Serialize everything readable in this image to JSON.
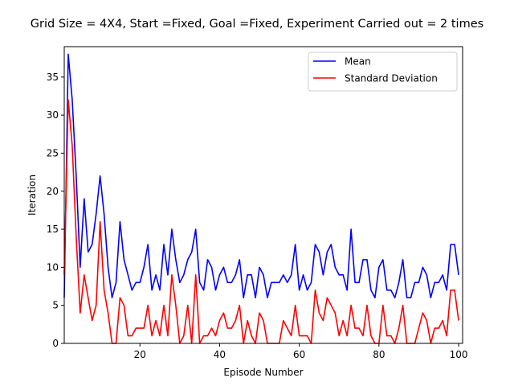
{
  "chart_data": {
    "type": "line",
    "title": "Grid Size = 4X4, Start =Fixed, Goal =Fixed, Experiment Carried out = 2 times",
    "xlabel": "Episode Number",
    "ylabel": "Iteration",
    "xlim": [
      1,
      101
    ],
    "ylim": [
      0,
      39
    ],
    "xticks": [
      20,
      40,
      60,
      80,
      100
    ],
    "yticks": [
      0,
      5,
      10,
      15,
      20,
      25,
      30,
      35
    ],
    "grid": false,
    "legend_position": "upper right",
    "x": [
      1,
      2,
      3,
      4,
      5,
      6,
      7,
      8,
      9,
      10,
      11,
      12,
      13,
      14,
      15,
      16,
      17,
      18,
      19,
      20,
      21,
      22,
      23,
      24,
      25,
      26,
      27,
      28,
      29,
      30,
      31,
      32,
      33,
      34,
      35,
      36,
      37,
      38,
      39,
      40,
      41,
      42,
      43,
      44,
      45,
      46,
      47,
      48,
      49,
      50,
      51,
      52,
      53,
      54,
      55,
      56,
      57,
      58,
      59,
      60,
      61,
      62,
      63,
      64,
      65,
      66,
      67,
      68,
      69,
      70,
      71,
      72,
      73,
      74,
      75,
      76,
      77,
      78,
      79,
      80,
      81,
      82,
      83,
      84,
      85,
      86,
      87,
      88,
      89,
      90,
      91,
      92,
      93,
      94,
      95,
      96,
      97,
      98,
      99,
      100
    ],
    "series": [
      {
        "name": "Mean",
        "color": "#0000ff",
        "values": [
          6,
          38,
          32,
          22,
          10,
          19,
          12,
          13,
          17,
          22,
          17,
          10,
          6,
          8,
          16,
          11,
          9,
          7,
          8,
          8,
          10,
          13,
          7,
          9,
          7,
          13,
          9,
          15,
          11,
          8,
          9,
          11,
          12,
          15,
          8,
          7,
          11,
          10,
          7,
          9,
          10,
          8,
          8,
          9,
          11,
          6,
          9,
          9,
          6,
          10,
          9,
          6,
          8,
          8,
          8,
          9,
          8,
          9,
          13,
          7,
          9,
          7,
          8,
          13,
          12,
          9,
          12,
          13,
          10,
          9,
          9,
          7,
          15,
          8,
          8,
          11,
          11,
          7,
          6,
          10,
          11,
          7,
          7,
          6,
          8,
          11,
          6,
          6,
          8,
          8,
          10,
          9,
          6,
          8,
          8,
          9,
          7,
          13,
          13,
          9
        ]
      },
      {
        "name": "Standard Deviation",
        "color": "#ff0000",
        "values": [
          9,
          32,
          26,
          14,
          4,
          9,
          6,
          3,
          5,
          16,
          7,
          4,
          0,
          0,
          6,
          5,
          1,
          1,
          2,
          2,
          2,
          5,
          1,
          3,
          1,
          5,
          1,
          9,
          5,
          0,
          1,
          5,
          0,
          9,
          0,
          1,
          1,
          2,
          1,
          3,
          4,
          2,
          2,
          3,
          5,
          0,
          3,
          1,
          0,
          4,
          3,
          0,
          0,
          0,
          0,
          3,
          2,
          1,
          5,
          1,
          1,
          1,
          0,
          7,
          4,
          3,
          6,
          5,
          4,
          1,
          3,
          1,
          5,
          2,
          2,
          1,
          5,
          1,
          0,
          0,
          5,
          1,
          1,
          0,
          2,
          5,
          0,
          0,
          0,
          2,
          4,
          3,
          0,
          2,
          2,
          3,
          1,
          7,
          7,
          3
        ]
      }
    ]
  }
}
